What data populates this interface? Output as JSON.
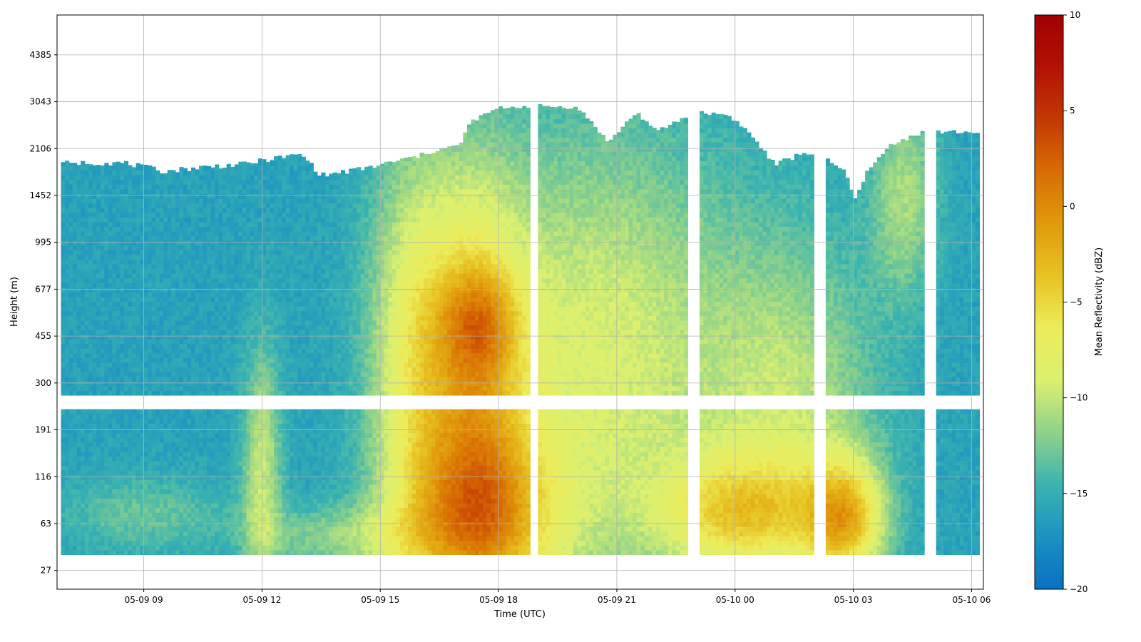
{
  "chart_data": {
    "type": "heatmap",
    "title": "",
    "xlabel": "Time (UTC)",
    "ylabel": "Height (m)",
    "x_ticks": [
      "05-09 09",
      "05-09 12",
      "05-09 15",
      "05-09 18",
      "05-09 21",
      "05-10 00",
      "05-10 03",
      "05-10 06"
    ],
    "x_tick_hours": [
      9,
      12,
      15,
      18,
      21,
      24,
      27,
      30
    ],
    "xlim_hours": [
      6.8,
      30.3
    ],
    "y_ticks": [
      27,
      63,
      116,
      191,
      300,
      455,
      677,
      995,
      1452,
      2106,
      3043,
      4385
    ],
    "ylim_tick_index": [
      -0.4,
      11.85
    ],
    "grid": true,
    "colorbar": {
      "label": "Mean Reflectivity (dBZ)",
      "min": -20,
      "max": 10,
      "ticks": [
        -20,
        -15,
        -10,
        -5,
        0,
        5,
        10
      ],
      "colormap": [
        "#0a6fc2",
        "#1a92c2",
        "#3bb3b0",
        "#8fd28a",
        "#dbf070",
        "#ecec5a",
        "#e7c222",
        "#e09a0c",
        "#d86d04",
        "#c23904",
        "#b31106",
        "#a00000"
      ]
    },
    "data_extent": {
      "start_hour": 6.9,
      "end_hour": 30.2,
      "bottom_height_m": 36,
      "lower_gate_top_m": 228,
      "upper_gate_bottom_m": 262
    },
    "cloud_top_height_m": [
      [
        6.9,
        1880
      ],
      [
        8.5,
        1880
      ],
      [
        9.5,
        1760
      ],
      [
        10.5,
        1820
      ],
      [
        11.5,
        1860
      ],
      [
        12.5,
        1970
      ],
      [
        13.0,
        2010
      ],
      [
        13.5,
        1700
      ],
      [
        14.5,
        1790
      ],
      [
        15.0,
        1850
      ],
      [
        16.0,
        1990
      ],
      [
        16.5,
        2100
      ],
      [
        17.0,
        2150
      ],
      [
        17.3,
        2600
      ],
      [
        18.0,
        2900
      ],
      [
        19.0,
        2950
      ],
      [
        20.0,
        2900
      ],
      [
        20.8,
        2200
      ],
      [
        21.5,
        2800
      ],
      [
        22.0,
        2400
      ],
      [
        23.0,
        2800
      ],
      [
        23.8,
        2750
      ],
      [
        24.2,
        2500
      ],
      [
        25.0,
        1850
      ],
      [
        25.8,
        2050
      ],
      [
        26.2,
        1960
      ],
      [
        26.8,
        1750
      ],
      [
        27.0,
        1400
      ],
      [
        27.3,
        1700
      ],
      [
        28.0,
        2200
      ],
      [
        28.8,
        2400
      ],
      [
        29.3,
        2400
      ],
      [
        30.2,
        2400
      ]
    ],
    "data_gaps_hours": [
      [
        18.8,
        19.0
      ],
      [
        22.8,
        23.1
      ],
      [
        26.0,
        26.3
      ],
      [
        28.8,
        29.1
      ]
    ],
    "reflectivity_features": [
      {
        "label": "background",
        "dbz": -16
      },
      {
        "start_hour": 15.0,
        "end_hour": 16.3,
        "dbz": -9
      },
      {
        "start_hour": 16.3,
        "end_hour": 18.2,
        "dbz": -3
      },
      {
        "start_hour": 16.8,
        "end_hour": 18.3,
        "dbz": 2
      },
      {
        "start_hour": 17.0,
        "end_hour": 18.0,
        "height_m": 50,
        "dbz": 2
      },
      {
        "start_hour": 18.2,
        "end_hour": 22.8,
        "dbz": -9
      },
      {
        "start_hour": 23.0,
        "end_hour": 27.5,
        "height_m": 80,
        "dbz": -2
      },
      {
        "start_hour": 26.5,
        "end_hour": 27.5,
        "height_m": 60,
        "dbz": 1
      }
    ]
  }
}
